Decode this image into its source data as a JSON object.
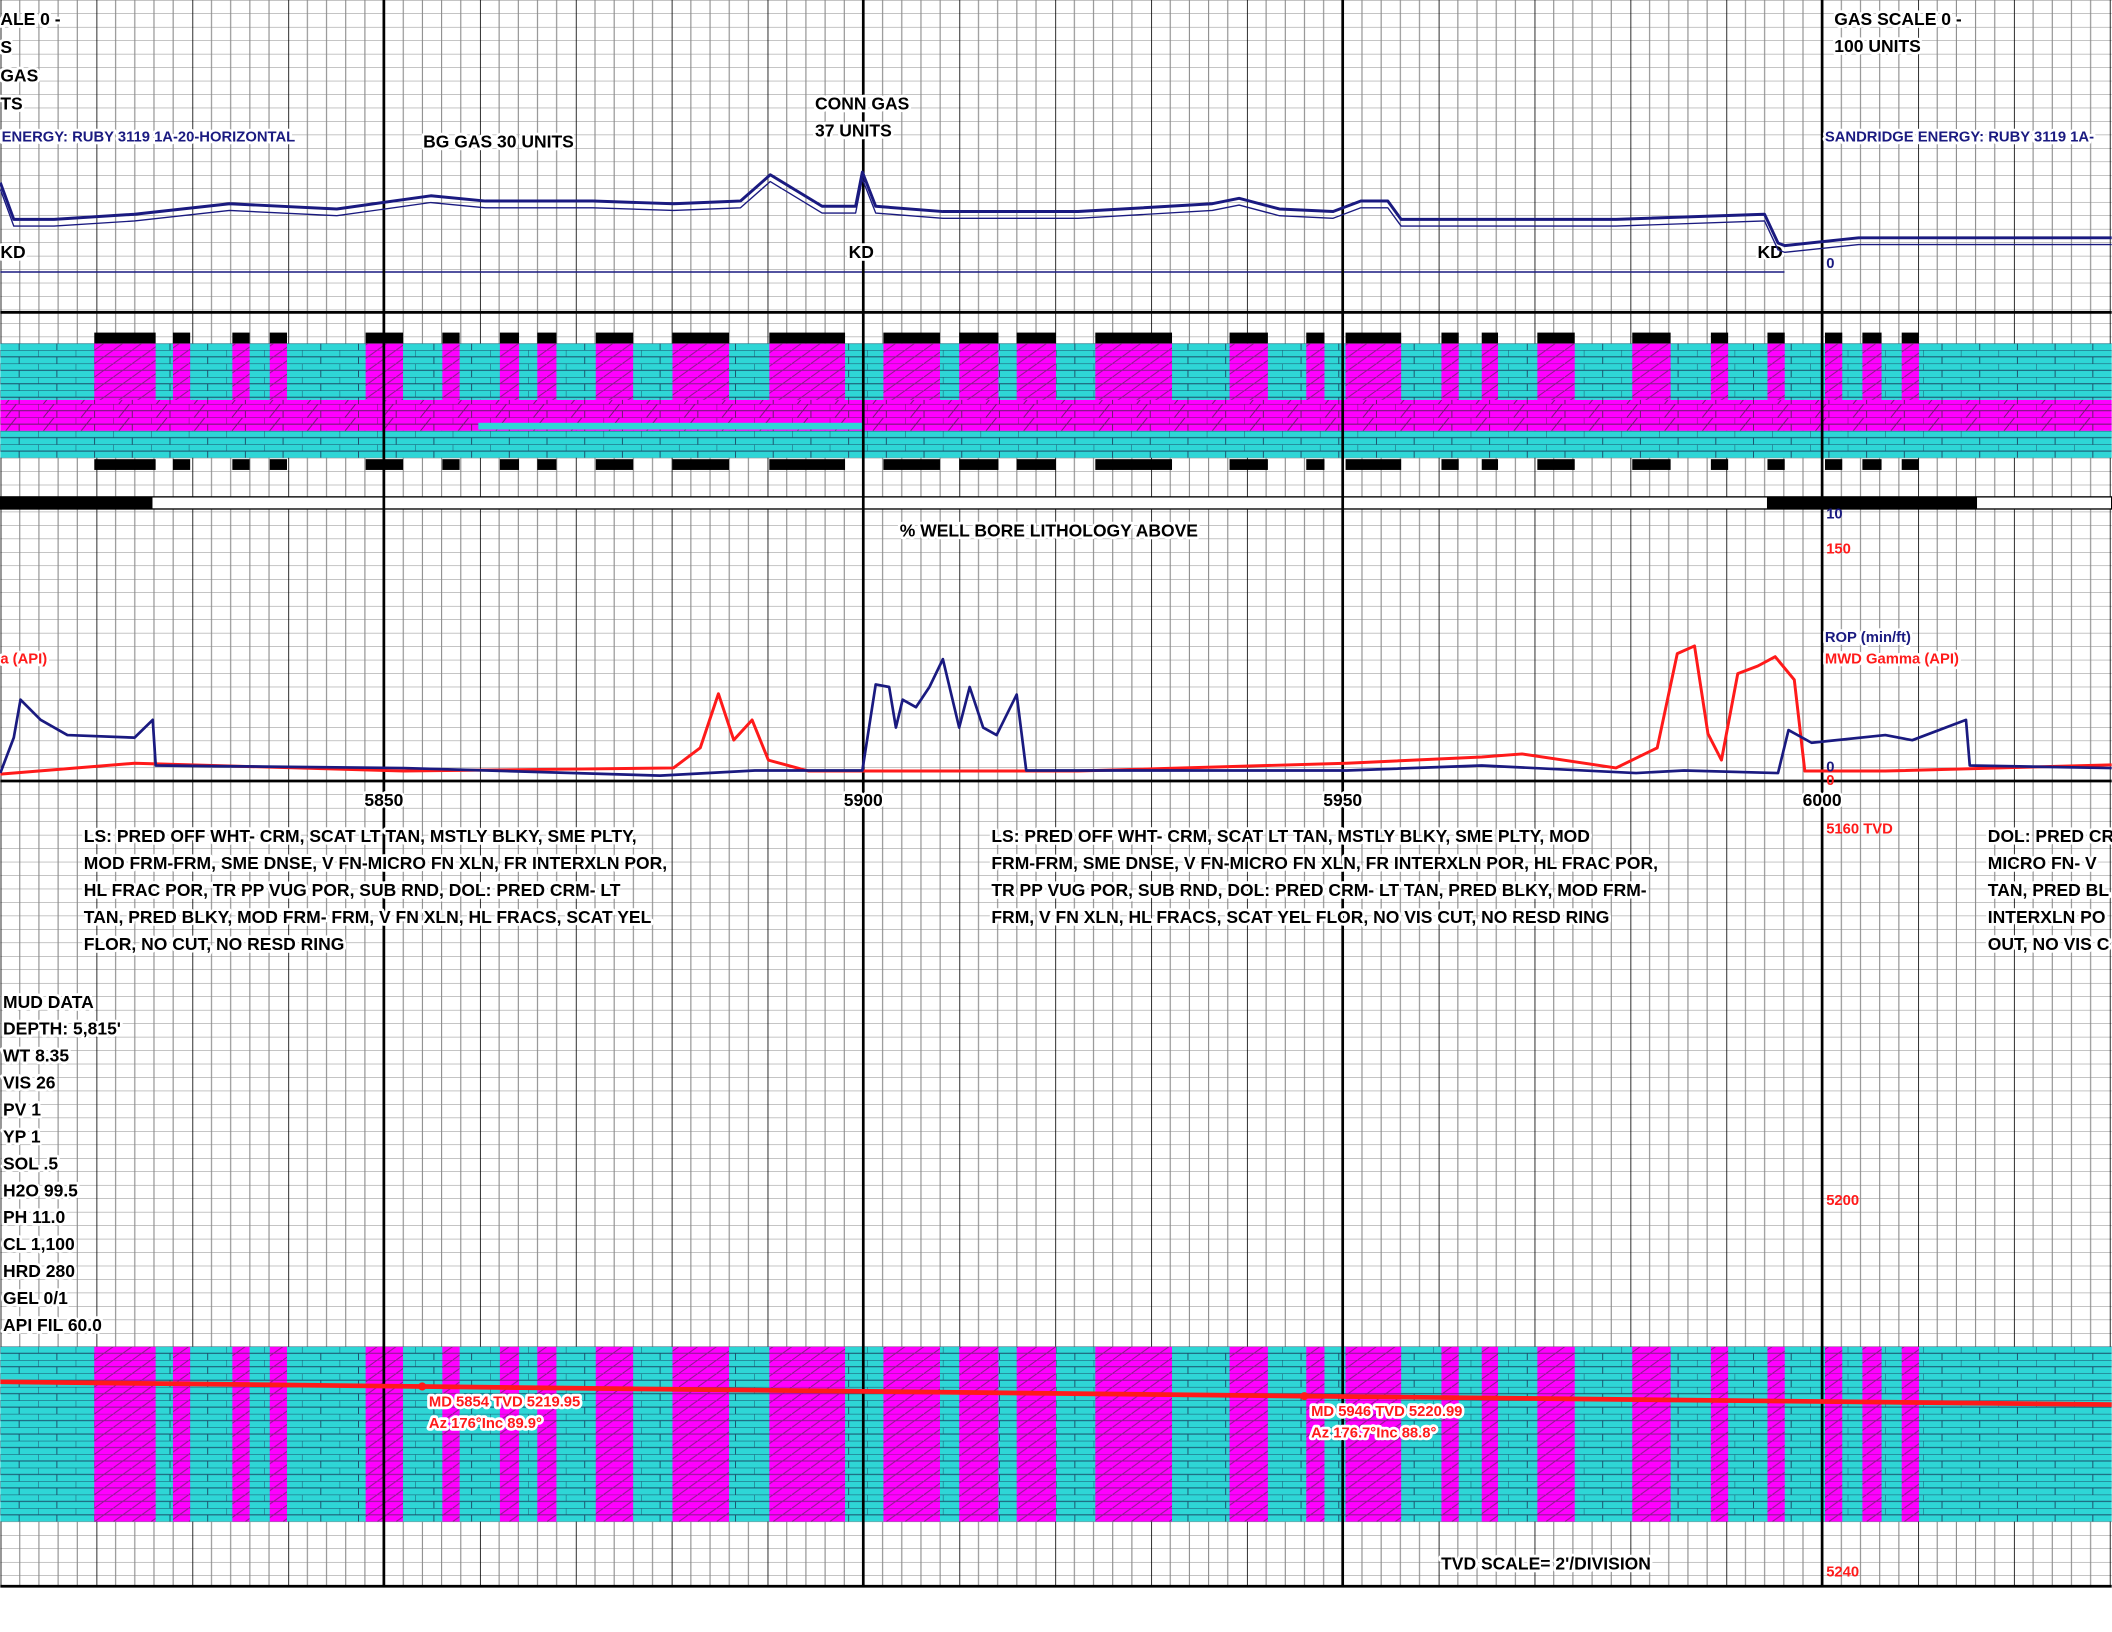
{
  "depth": {
    "xlim": [
      5810,
      6030.2
    ],
    "ticks": [
      5850,
      5900,
      5950,
      6000
    ]
  },
  "gas_track": {
    "left_scale_lines": [
      "ALE 0 -",
      "S",
      "GAS",
      "TS"
    ],
    "scale_lines": [
      "GAS SCALE 0 -",
      "100 UNITS"
    ],
    "well_left": "ENERGY:  RUBY 3119 1A-20-HORIZONTAL",
    "well_right": "SANDRIDGE ENERGY:  RUBY 3119 1A-",
    "bg_gas": "BG GAS 30 UNITS",
    "conn_gas": [
      "CONN GAS",
      "37 UNITS"
    ],
    "kd_labels": [
      "KD",
      "KD",
      "KD"
    ],
    "ylim": [
      0,
      100
    ],
    "yticks": [
      0
    ],
    "gas": {
      "color": "#1a1a80",
      "x": [
        5810,
        5811.4,
        5815.6,
        5824.0,
        5833.9,
        5845.1,
        5854.9,
        5860.6,
        5871.8,
        5880.2,
        5887.2,
        5890.3,
        5895.7,
        5899.2,
        5899.9,
        5901.3,
        5908.3,
        5922.4,
        5936.4,
        5939.2,
        5943.4,
        5949.0,
        5951.9,
        5954.7,
        5956.1,
        5978.5,
        5994.0,
        5995.4,
        5996.1,
        6003.8,
        6030.2
      ],
      "values": [
        33,
        19,
        19,
        21,
        25,
        23,
        28,
        26,
        26,
        25,
        26,
        36,
        24,
        24,
        37,
        24,
        22,
        22,
        25,
        27,
        23,
        22,
        26,
        26,
        19,
        19,
        21,
        10,
        9,
        12,
        12
      ]
    }
  },
  "lithology": {
    "dolomite_intervals": [
      [
        5819.8,
        5826.2
      ],
      [
        5828.0,
        5829.8
      ],
      [
        5834.2,
        5836.0
      ],
      [
        5838.1,
        5839.9
      ],
      [
        5848.1,
        5852.0
      ],
      [
        5856.1,
        5857.9
      ],
      [
        5862.1,
        5864.1
      ],
      [
        5866.0,
        5868.0
      ],
      [
        5872.1,
        5876.0
      ],
      [
        5880.1,
        5886.0
      ],
      [
        5890.2,
        5898.1
      ],
      [
        5902.1,
        5908.0
      ],
      [
        5910.0,
        5914.1
      ],
      [
        5916.0,
        5920.1
      ],
      [
        5924.2,
        5932.2
      ],
      [
        5938.2,
        5942.2
      ],
      [
        5946.2,
        5948.1
      ],
      [
        5950.3,
        5956.1
      ],
      [
        5960.3,
        5962.1
      ],
      [
        5964.5,
        5966.2
      ],
      [
        5970.3,
        5974.2
      ],
      [
        5980.2,
        5984.2
      ],
      [
        5988.4,
        5990.2
      ],
      [
        5994.3,
        5996.1
      ],
      [
        6000.3,
        6002.1
      ],
      [
        6004.2,
        6006.2
      ],
      [
        6008.3,
        6010.1
      ]
    ],
    "title": "% WELL BORE LITHOLOGY ABOVE"
  },
  "log_track": {
    "left_label": "a (API)",
    "rop": {
      "name": "ROP (min/ft)",
      "color": "#1a1a80",
      "ylim": [
        0,
        10
      ],
      "yticks": [
        0,
        10
      ],
      "x": [
        5810,
        5811.4,
        5812.1,
        5814.2,
        5817.0,
        5824.0,
        5825.9,
        5826.2,
        5852.1,
        5878.8,
        5888.7,
        5899.9,
        5901.3,
        5902.7,
        5903.4,
        5904.1,
        5905.5,
        5906.9,
        5908.3,
        5910.0,
        5911.1,
        5912.5,
        5913.9,
        5916.0,
        5917.0,
        5950.4,
        5964.5,
        5980.6,
        5985.6,
        5995.4,
        5996.5,
        5998.9,
        6006.6,
        6009.4,
        6015.0,
        6015.4,
        6030.2
      ],
      "values": [
        0.1,
        1.5,
        3.0,
        2.2,
        1.6,
        1.5,
        2.2,
        0.4,
        0.3,
        0,
        0.2,
        0.2,
        3.6,
        3.5,
        1.9,
        3.0,
        2.7,
        3.5,
        4.6,
        1.9,
        3.5,
        1.9,
        1.6,
        3.2,
        0.2,
        0.2,
        0.4,
        0.1,
        0.2,
        0.1,
        1.8,
        1.3,
        1.6,
        1.4,
        2.2,
        0.4,
        0.3
      ]
    },
    "gamma": {
      "name": "MWD Gamma (API)",
      "color": "#ff1a1a",
      "ylim": [
        0,
        150
      ],
      "yticks": [
        0,
        150
      ],
      "x": [
        5810,
        5824.0,
        5852.1,
        5880.2,
        5883.0,
        5884.9,
        5886.5,
        5888.4,
        5890.1,
        5894.3,
        5922.4,
        5950.4,
        5964.5,
        5968.7,
        5978.5,
        5982.8,
        5984.9,
        5986.7,
        5988.1,
        5989.5,
        5991.2,
        5993.3,
        5995.1,
        5997.1,
        5998.2,
        6006.6,
        6030.2
      ],
      "values": [
        1,
        8,
        3,
        5,
        18,
        53,
        23,
        36,
        10,
        3,
        3,
        8,
        12,
        14,
        5,
        18,
        79,
        84,
        27,
        10,
        66,
        71,
        77,
        62,
        3,
        3,
        7
      ]
    }
  },
  "descriptions": {
    "left": [
      "LS: PRED  OFF WHT- CRM, SCAT LT TAN, MSTLY BLKY, SME PLTY,",
      "MOD FRM-FRM, SME DNSE, V FN-MICRO FN XLN, FR INTERXLN POR,",
      " HL FRAC POR, TR PP VUG POR, SUB RND,  DOL: PRED CRM- LT",
      "TAN, PRED BLKY, MOD FRM- FRM, V FN XLN, HL FRACS, SCAT  YEL",
      "FLOR, NO CUT, NO RESD RING"
    ],
    "middle": [
      "LS: PRED  OFF WHT- CRM, SCAT LT TAN, MSTLY BLKY, SME PLTY,  MOD",
      "FRM-FRM, SME DNSE, V FN-MICRO FN XLN, FR INTERXLN POR,  HL FRAC POR,",
      "TR PP VUG POR, SUB RND,  DOL: PRED CRM- LT TAN, PRED BLKY, MOD FRM-",
      "FRM, V FN XLN, HL FRACS, SCAT  YEL FLOR, NO VIS CUT, NO  RESD RING"
    ],
    "right": [
      " DOL: PRED CR",
      "MICRO FN- V",
      "TAN, PRED BL",
      "INTERXLN PO",
      "OUT, NO VIS C"
    ]
  },
  "mud_data": [
    "MUD DATA",
    "DEPTH: 5,815'",
    "WT 8.35",
    "VIS 26",
    "PV 1",
    "YP 1",
    "SOL .5",
    "H2O 99.5",
    "PH 11.0",
    "CL 1,100",
    "HRD 280",
    "GEL 0/1",
    "API FIL 60.0"
  ],
  "tvd": {
    "color": "#ff1a1a",
    "ylim": [
      5160,
      5240
    ],
    "yticks": [
      {
        "value": 5160,
        "label": "5160 TVD"
      },
      5200,
      5240
    ],
    "x": [
      5810,
      5854,
      5946,
      6030.2
    ],
    "values": [
      5219.45,
      5219.95,
      5220.99,
      5221.9
    ],
    "annotations": [
      [
        "MD 5854 TVD 5219.95",
        "Az 176°Inc 89.9°"
      ],
      [
        "MD 5946 TVD 5220.99",
        "Az 176.7°Inc 88.8°"
      ]
    ],
    "scale_label": "TVD SCALE= 2'/DIVISION"
  }
}
